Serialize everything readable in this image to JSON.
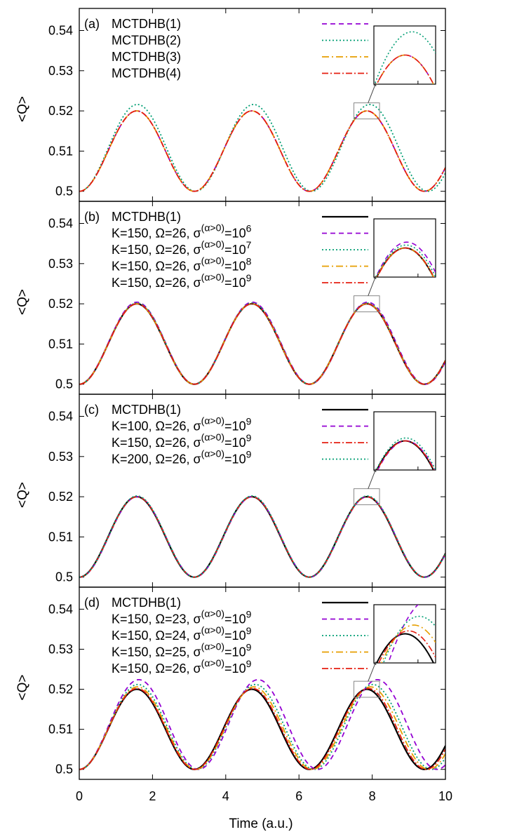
{
  "figure": {
    "xlabel": "Time (a.u.)",
    "ylabel": "<Q>",
    "xticks": [
      "0",
      "2",
      "4",
      "6",
      "8",
      "10"
    ],
    "yticks": [
      "0.5",
      "0.51",
      "0.52",
      "0.53",
      "0.54"
    ]
  },
  "colors": {
    "black": "#000000",
    "purple": "#9400d3",
    "teal": "#009e73",
    "orange": "#e69f00",
    "red": "#e51e10"
  },
  "chart_data": [
    {
      "type": "line",
      "panel": "(a)",
      "xlabel": "Time (a.u.)",
      "ylabel": "<Q>",
      "xlim": [
        0,
        10
      ],
      "ylim": [
        0.4975,
        0.5455
      ],
      "grid": false,
      "legend_position": "top-left",
      "inset": {
        "x_range": [
          7.5,
          8.2
        ],
        "y_range": [
          0.518,
          0.522
        ]
      },
      "legend": [
        {
          "text": "MCTDHB(1)",
          "color": "purple",
          "dash": "dash"
        },
        {
          "text": "MCTDHB(2)",
          "color": "teal",
          "dash": "dot"
        },
        {
          "text": "MCTDHB(3)",
          "color": "orange",
          "dash": "dashdot"
        },
        {
          "text": "MCTDHB(4)",
          "color": "red",
          "dash": "dashdot2"
        }
      ],
      "series": [
        {
          "name": "MCTDHB(1)",
          "color": "purple",
          "dash": "dash",
          "A": 0.01,
          "w": 2.0,
          "p": 0.0
        },
        {
          "name": "MCTDHB(2)",
          "color": "teal",
          "dash": "dot",
          "A": 0.0108,
          "w": 1.98,
          "p": 0.0
        },
        {
          "name": "MCTDHB(3)",
          "color": "orange",
          "dash": "dashdot",
          "A": 0.01,
          "w": 2.0,
          "p": 0.0
        },
        {
          "name": "MCTDHB(4)",
          "color": "red",
          "dash": "dashdot2",
          "A": 0.01,
          "w": 2.0,
          "p": 0.0
        }
      ]
    },
    {
      "type": "line",
      "panel": "(b)",
      "xlabel": "Time (a.u.)",
      "ylabel": "<Q>",
      "xlim": [
        0,
        10
      ],
      "ylim": [
        0.4975,
        0.5455
      ],
      "grid": false,
      "legend_position": "top-left",
      "inset": {
        "x_range": [
          7.5,
          8.2
        ],
        "y_range": [
          0.518,
          0.522
        ]
      },
      "legend": [
        {
          "text": "MCTDHB(1)",
          "color": "black",
          "dash": "solid"
        },
        {
          "text": "K=150, Ω=26, σ",
          "sup": "(α>0)",
          "tail": "=10",
          "exp": "6",
          "color": "purple",
          "dash": "dash"
        },
        {
          "text": "K=150, Ω=26, σ",
          "sup": "(α>0)",
          "tail": "=10",
          "exp": "7",
          "color": "teal",
          "dash": "dot"
        },
        {
          "text": "K=150, Ω=26, σ",
          "sup": "(α>0)",
          "tail": "=10",
          "exp": "8",
          "color": "orange",
          "dash": "dashdot"
        },
        {
          "text": "K=150, Ω=26, σ",
          "sup": "(α>0)",
          "tail": "=10",
          "exp": "9",
          "color": "red",
          "dash": "dashdot2"
        }
      ],
      "series": [
        {
          "name": "MCTDHB(1)",
          "color": "black",
          "dash": "solid",
          "A": 0.01,
          "w": 2.0,
          "p": 0.0
        },
        {
          "name": "K=150, Ω=26, σ(α>0)=10^6",
          "color": "purple",
          "dash": "dash",
          "A": 0.0102,
          "w": 1.995,
          "p": 0.0
        },
        {
          "name": "K=150, Ω=26, σ(α>0)=10^7",
          "color": "teal",
          "dash": "dot",
          "A": 0.0101,
          "w": 2.0,
          "p": 0.01
        },
        {
          "name": "K=150, Ω=26, σ(α>0)=10^8",
          "color": "orange",
          "dash": "dashdot",
          "A": 0.01,
          "w": 2.0,
          "p": 0.0
        },
        {
          "name": "K=150, Ω=26, σ(α>0)=10^9",
          "color": "red",
          "dash": "dashdot2",
          "A": 0.01,
          "w": 2.0,
          "p": 0.005
        }
      ]
    },
    {
      "type": "line",
      "panel": "(c)",
      "xlabel": "Time (a.u.)",
      "ylabel": "<Q>",
      "xlim": [
        0,
        10
      ],
      "ylim": [
        0.4975,
        0.5455
      ],
      "grid": false,
      "legend_position": "top-left",
      "inset": {
        "x_range": [
          7.5,
          8.2
        ],
        "y_range": [
          0.518,
          0.522
        ]
      },
      "legend": [
        {
          "text": "MCTDHB(1)",
          "color": "black",
          "dash": "solid"
        },
        {
          "text": "K=100, Ω=26, σ",
          "sup": "(α>0)",
          "tail": "=10",
          "exp": "9",
          "color": "purple",
          "dash": "dash"
        },
        {
          "text": "K=150, Ω=26, σ",
          "sup": "(α>0)",
          "tail": "=10",
          "exp": "9",
          "color": "red",
          "dash": "dashdot2"
        },
        {
          "text": "K=200, Ω=26, σ",
          "sup": "(α>0)",
          "tail": "=10",
          "exp": "9",
          "color": "teal",
          "dash": "dot"
        }
      ],
      "series": [
        {
          "name": "MCTDHB(1)",
          "color": "black",
          "dash": "solid",
          "A": 0.01,
          "w": 2.0,
          "p": 0.0
        },
        {
          "name": "K=100, Ω=26, σ(α>0)=10^9",
          "color": "purple",
          "dash": "dash",
          "A": 0.01,
          "w": 2.0,
          "p": 0.012
        },
        {
          "name": "K=150, Ω=26, σ(α>0)=10^9",
          "color": "red",
          "dash": "dashdot2",
          "A": 0.01,
          "w": 2.0,
          "p": 0.006
        },
        {
          "name": "K=200, Ω=26, σ(α>0)=10^9",
          "color": "teal",
          "dash": "dot",
          "A": 0.0101,
          "w": 2.0,
          "p": 0.009
        }
      ]
    },
    {
      "type": "line",
      "panel": "(d)",
      "xlabel": "Time (a.u.)",
      "ylabel": "<Q>",
      "xlim": [
        0,
        10
      ],
      "ylim": [
        0.4975,
        0.5455
      ],
      "grid": false,
      "legend_position": "top-left",
      "inset": {
        "x_range": [
          7.5,
          8.2
        ],
        "y_range": [
          0.518,
          0.522
        ]
      },
      "legend": [
        {
          "text": "MCTDHB(1)",
          "color": "black",
          "dash": "solid"
        },
        {
          "text": "K=150, Ω=23, σ",
          "sup": "(α>0)",
          "tail": "=10",
          "exp": "9",
          "color": "purple",
          "dash": "dash"
        },
        {
          "text": "K=150, Ω=24, σ",
          "sup": "(α>0)",
          "tail": "=10",
          "exp": "9",
          "color": "teal",
          "dash": "dot"
        },
        {
          "text": "K=150, Ω=25, σ",
          "sup": "(α>0)",
          "tail": "=10",
          "exp": "9",
          "color": "orange",
          "dash": "dashdot"
        },
        {
          "text": "K=150, Ω=26, σ",
          "sup": "(α>0)",
          "tail": "=10",
          "exp": "9",
          "color": "red",
          "dash": "dashdot2"
        }
      ],
      "series": [
        {
          "name": "MCTDHB(1)",
          "color": "black",
          "dash": "solid",
          "A": 0.01,
          "w": 2.0,
          "p": 0.0
        },
        {
          "name": "K=150, Ω=23, σ(α>0)=10^9",
          "color": "purple",
          "dash": "dash",
          "A": 0.0112,
          "w": 1.93,
          "p": 0.0
        },
        {
          "name": "K=150, Ω=24, σ(α>0)=10^9",
          "color": "teal",
          "dash": "dot",
          "A": 0.0106,
          "w": 1.96,
          "p": 0.0
        },
        {
          "name": "K=150, Ω=25, σ(α>0)=10^9",
          "color": "orange",
          "dash": "dashdot",
          "A": 0.0103,
          "w": 1.975,
          "p": 0.0
        },
        {
          "name": "K=150, Ω=26, σ(α>0)=10^9",
          "color": "red",
          "dash": "dashdot2",
          "A": 0.0101,
          "w": 1.99,
          "p": 0.0
        }
      ]
    }
  ]
}
